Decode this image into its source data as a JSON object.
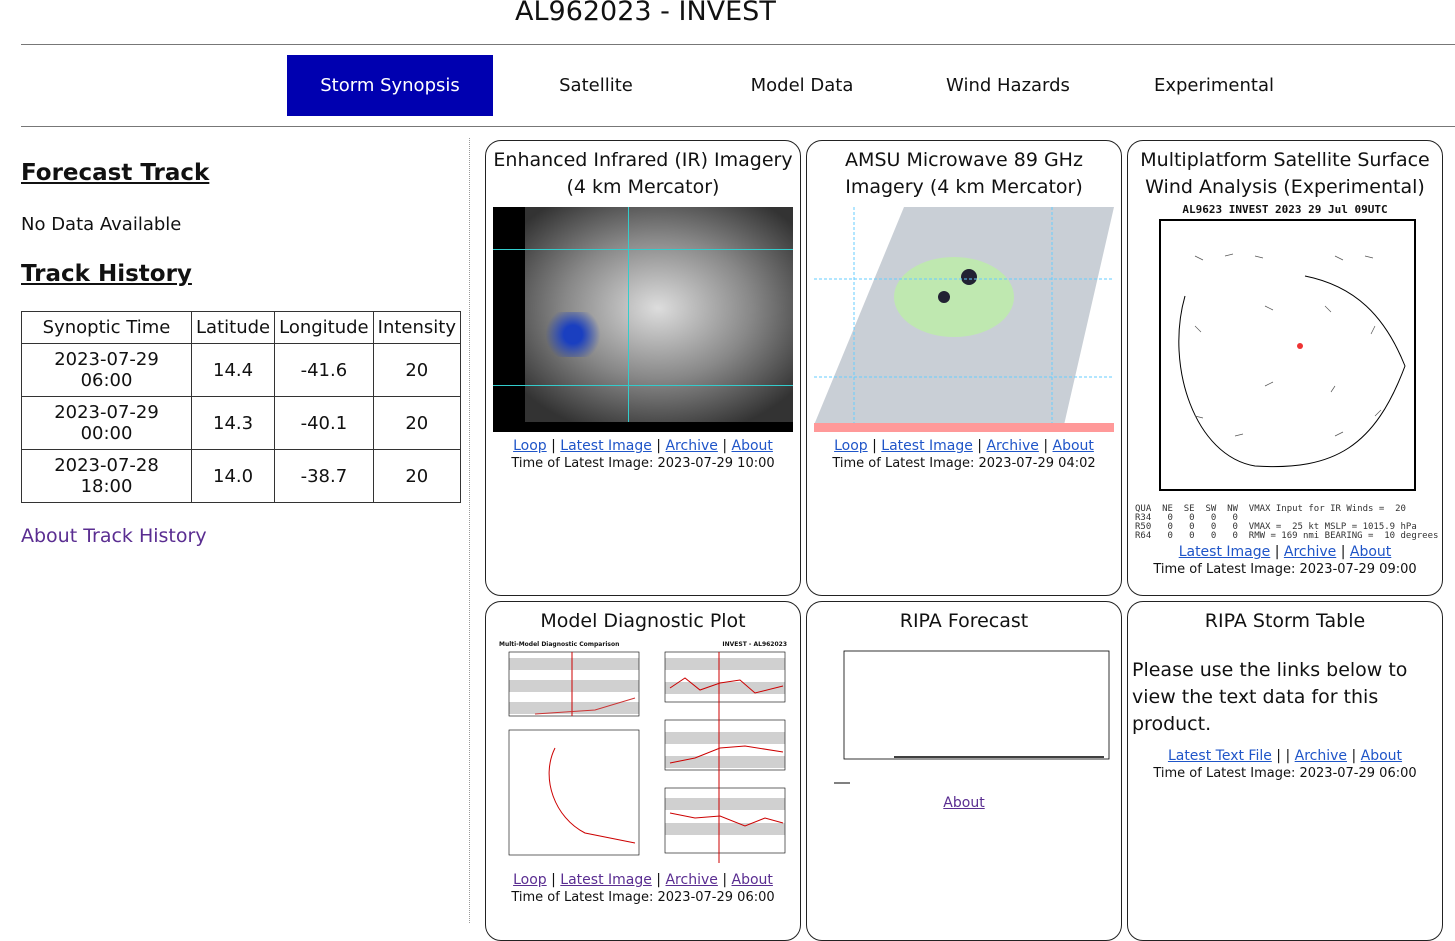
{
  "header": {
    "title": "AL962023 - INVEST"
  },
  "nav": {
    "tabs": [
      "Storm Synopsis",
      "Satellite",
      "Model Data",
      "Wind Hazards",
      "Experimental"
    ],
    "active": "Storm Synopsis",
    "active_color": "#0000b0"
  },
  "left": {
    "forecast_title": "Forecast Track",
    "forecast_text": "No Data Available",
    "history_title": "Track History",
    "columns": [
      "Synoptic Time",
      "Latitude",
      "Longitude",
      "Intensity"
    ],
    "rows": [
      [
        "2023-07-29 06:00",
        "14.4",
        "-41.6",
        "20"
      ],
      [
        "2023-07-29 00:00",
        "14.3",
        "-40.1",
        "20"
      ],
      [
        "2023-07-28 18:00",
        "14.0",
        "-38.7",
        "20"
      ]
    ],
    "about_link": "About Track History"
  },
  "panels": [
    {
      "title": "Enhanced Infrared (IR) Imagery (4 km Mercator)",
      "links": [
        "Loop",
        "Latest Image",
        "Archive",
        "About"
      ],
      "time": "Time of Latest Image: 2023-07-29 10:00"
    },
    {
      "title": "AMSU Microwave 89 GHz Imagery (4 km Mercator)",
      "links": [
        "Loop",
        "Latest Image",
        "Archive",
        "About"
      ],
      "time": "Time of Latest Image: 2023-07-29 04:02"
    },
    {
      "title": "Multiplatform Satellite Surface Wind Analysis (Experimental)",
      "image_header": "AL9623    INVEST    2023 29 Jul 09UTC",
      "image_footer": [
        "QUA  NE  SE  SW  NW  VMAX Input for IR Winds =  20",
        "R34   0   0   0   0",
        "R50   0   0   0   0  VMAX =  25 kt MSLP = 1015.9 hPa",
        "R64   0   0   0   0  RMW = 169 nmi BEARING =  10 degrees"
      ],
      "links": [
        "Latest Image",
        "Archive",
        "About"
      ],
      "time": "Time of Latest Image: 2023-07-29 09:00"
    },
    {
      "title": "Model Diagnostic Plot",
      "image_header": "Multi-Model Diagnostic Comparison",
      "image_header2": "INVEST - AL962023",
      "links": [
        "Loop",
        "Latest Image",
        "Archive",
        "About"
      ],
      "time": "Time of Latest Image: 2023-07-29 06:00"
    },
    {
      "title": "RIPA Forecast",
      "links": [
        "About"
      ]
    },
    {
      "title": "RIPA Storm Table",
      "text": "Please use the links below to view the text data for this product.",
      "links": [
        "Latest Text File",
        "Archive",
        "About"
      ],
      "time": "Time of Latest Image: 2023-07-29 06:00"
    }
  ]
}
